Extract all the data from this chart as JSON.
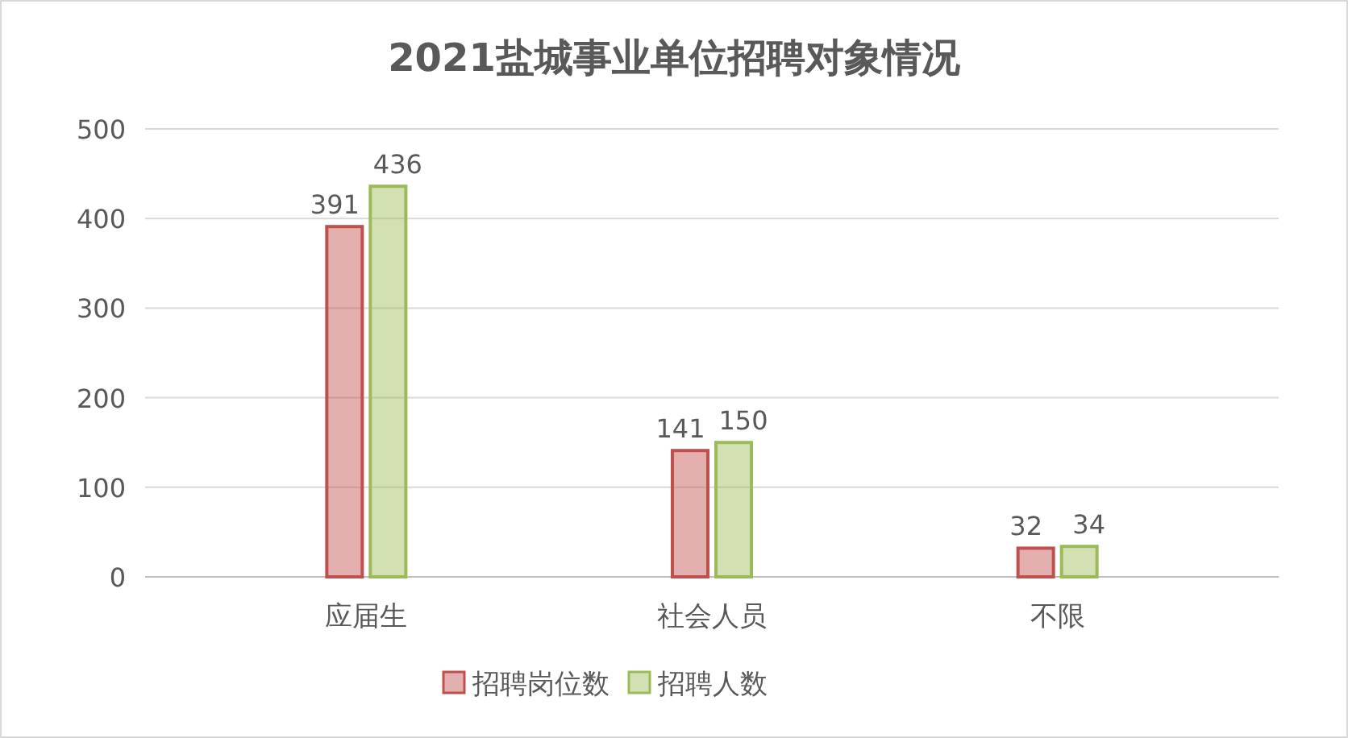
{
  "chart_data": {
    "type": "bar",
    "title": "2021盐城事业单位招聘对象情况",
    "categories": [
      "应届生",
      "社会人员",
      "不限"
    ],
    "series": [
      {
        "name": "招聘岗位数",
        "color": "#c0504d",
        "values": [
          391,
          141,
          32
        ]
      },
      {
        "name": "招聘人数",
        "color": "#9bbb59",
        "values": [
          436,
          150,
          34
        ]
      }
    ],
    "ylim": [
      0,
      500
    ],
    "yticks": [
      0,
      100,
      200,
      300,
      400,
      500
    ],
    "grid": "y",
    "legend": "bottom",
    "data_labels": true
  }
}
